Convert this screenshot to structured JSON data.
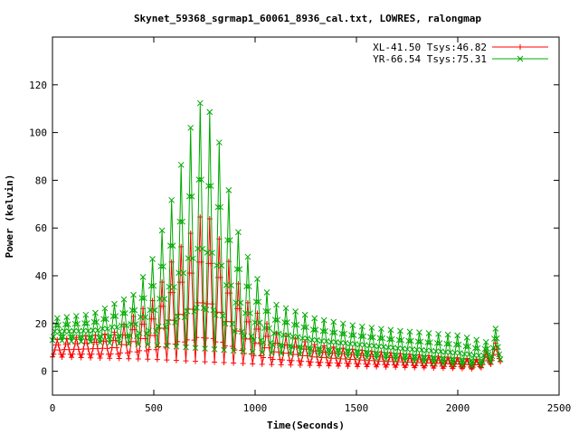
{
  "chart_data": {
    "type": "line",
    "title": "Skynet_59368_sgrmap1_60061_8936_cal.txt, LOWRES, ralongmap",
    "xlabel": "Time(Seconds)",
    "ylabel": "Power (kelvin)",
    "xlim": [
      0,
      2500
    ],
    "ylim": [
      -10,
      140
    ],
    "xticks": [
      0,
      500,
      1000,
      1500,
      2000,
      2500
    ],
    "yticks": [
      0,
      20,
      40,
      60,
      80,
      100,
      120
    ],
    "xtick_labels": [
      "0",
      "500",
      "1000",
      "1500",
      "2000",
      "2500"
    ],
    "ytick_labels": [
      "0",
      "20",
      "40",
      "60",
      "80",
      "100",
      "120"
    ],
    "grid": false,
    "legend_position": "top-right",
    "scan_count": 47,
    "time_end": 2210,
    "series": [
      {
        "name": "XL-41.50 Tsys:46.82",
        "color": "#ff0000",
        "marker": "plus",
        "baseline": [
          [
            0,
            6
          ],
          [
            500,
            5
          ],
          [
            1000,
            3
          ],
          [
            1500,
            2
          ],
          [
            2100,
            1
          ],
          [
            2200,
            4
          ]
        ],
        "peak": [
          [
            0,
            13
          ],
          [
            300,
            16
          ],
          [
            500,
            30
          ],
          [
            600,
            48
          ],
          [
            700,
            60
          ],
          [
            750,
            68
          ],
          [
            800,
            60
          ],
          [
            850,
            50
          ],
          [
            950,
            30
          ],
          [
            1100,
            16
          ],
          [
            1300,
            11
          ],
          [
            1600,
            8
          ],
          [
            2100,
            5
          ],
          [
            2190,
            12
          ]
        ]
      },
      {
        "name": "YR-66.54 Tsys:75.31",
        "color": "#00aa00",
        "marker": "cross",
        "baseline": [
          [
            0,
            13
          ],
          [
            500,
            11
          ],
          [
            1000,
            8
          ],
          [
            1500,
            6
          ],
          [
            2100,
            2
          ],
          [
            2200,
            5
          ]
        ],
        "peak": [
          [
            0,
            22
          ],
          [
            200,
            24
          ],
          [
            400,
            32
          ],
          [
            500,
            48
          ],
          [
            600,
            75
          ],
          [
            700,
            108
          ],
          [
            740,
            114
          ],
          [
            800,
            105
          ],
          [
            850,
            85
          ],
          [
            900,
            62
          ],
          [
            1000,
            40
          ],
          [
            1100,
            28
          ],
          [
            1300,
            22
          ],
          [
            1500,
            19
          ],
          [
            1700,
            17
          ],
          [
            2000,
            15
          ],
          [
            2150,
            12
          ],
          [
            2200,
            20
          ]
        ]
      }
    ]
  }
}
